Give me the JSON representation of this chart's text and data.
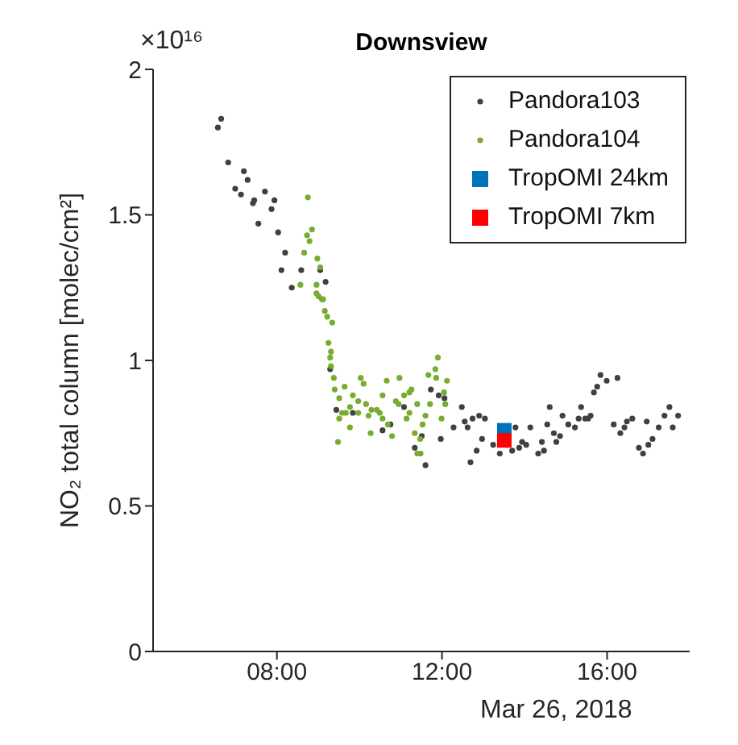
{
  "chart_data": {
    "type": "scatter",
    "title": "Downsview",
    "ylabel": "NO₂ total column [molec/cm²]",
    "annotations": [
      "×10¹⁶",
      "Mar 26, 2018"
    ],
    "xlim": [
      5,
      18
    ],
    "xticks": [
      {
        "value": 8,
        "label": "08:00"
      },
      {
        "value": 12,
        "label": "12:00"
      },
      {
        "value": 16,
        "label": "16:00"
      }
    ],
    "ylim": [
      0,
      2
    ],
    "yticks": [
      0,
      0.5,
      1,
      1.5,
      2
    ],
    "grid": false,
    "legend": "top right",
    "series": [
      {
        "name": "Pandora103",
        "color": "#404040",
        "marker": "circle",
        "x": [
          6.65,
          6.57,
          6.82,
          7.2,
          7.29,
          6.99,
          7.13,
          7.71,
          7.94,
          7.42,
          7.45,
          7.87,
          7.55,
          8.03,
          8.2,
          8.11,
          8.36,
          8.59,
          9.05,
          9.18,
          9.29,
          9.44,
          9.84,
          10.56,
          10.75,
          11.08,
          11.6,
          11.34,
          11.51,
          11.97,
          11.73,
          11.92,
          12.06,
          12.28,
          12.48,
          12.55,
          12.62,
          12.69,
          12.74,
          12.84,
          12.9,
          12.97,
          13.04,
          13.24,
          13.4,
          13.58,
          13.7,
          13.78,
          13.87,
          13.94,
          14.04,
          14.14,
          14.33,
          14.42,
          14.47,
          14.55,
          14.61,
          14.71,
          14.77,
          14.86,
          14.92,
          15.06,
          15.22,
          15.31,
          15.37,
          15.47,
          15.54,
          15.6,
          15.68,
          15.76,
          15.84,
          15.99,
          16.25,
          16.16,
          16.32,
          16.42,
          16.48,
          16.61,
          16.77,
          16.87,
          16.96,
          17.0,
          17.1,
          17.25,
          17.39,
          17.51,
          17.59,
          17.72
        ],
        "values": [
          1.83,
          1.8,
          1.68,
          1.65,
          1.62,
          1.59,
          1.57,
          1.58,
          1.55,
          1.54,
          1.55,
          1.52,
          1.47,
          1.44,
          1.37,
          1.31,
          1.25,
          1.31,
          1.31,
          1.27,
          0.97,
          0.83,
          0.82,
          0.76,
          0.78,
          0.84,
          0.64,
          0.7,
          0.74,
          0.73,
          0.9,
          0.88,
          0.87,
          0.77,
          0.84,
          0.79,
          0.77,
          0.65,
          0.8,
          0.69,
          0.81,
          0.73,
          0.8,
          0.71,
          0.68,
          0.71,
          0.69,
          0.77,
          0.7,
          0.72,
          0.71,
          0.77,
          0.68,
          0.72,
          0.69,
          0.78,
          0.84,
          0.75,
          0.72,
          0.74,
          0.81,
          0.78,
          0.77,
          0.8,
          0.84,
          0.8,
          0.8,
          0.81,
          0.89,
          0.91,
          0.95,
          0.93,
          0.94,
          0.78,
          0.75,
          0.77,
          0.79,
          0.8,
          0.7,
          0.68,
          0.79,
          0.71,
          0.73,
          0.77,
          0.81,
          0.84,
          0.77,
          0.81
        ]
      },
      {
        "name": "Pandora104",
        "color": "#77ac30",
        "marker": "circle",
        "x": [
          8.75,
          8.85,
          8.73,
          8.79,
          8.66,
          8.98,
          9.05,
          8.57,
          8.96,
          9.01,
          9.12,
          8.96,
          9.09,
          9.16,
          9.22,
          9.34,
          9.25,
          9.31,
          9.29,
          9.31,
          9.38,
          9.4,
          9.51,
          9.64,
          9.67,
          9.77,
          9.84,
          10.03,
          10.1,
          9.51,
          9.77,
          9.48,
          9.97,
          10.16,
          10.29,
          10.42,
          10.27,
          10.56,
          10.66,
          10.97,
          10.69,
          10.79,
          10.95,
          11.08,
          11.21,
          11.26,
          11.34,
          11.4,
          11.47,
          11.53,
          11.4,
          11.48,
          11.67,
          11.84,
          11.9,
          11.86,
          11.99,
          12.12,
          12.05,
          11.71,
          11.6,
          10.88,
          10.56,
          10.49,
          9.97,
          9.58,
          10.22,
          11.21,
          11.14,
          12.08
        ],
        "values": [
          1.56,
          1.45,
          1.43,
          1.41,
          1.37,
          1.35,
          1.32,
          1.26,
          1.26,
          1.22,
          1.21,
          1.23,
          1.21,
          1.17,
          1.15,
          1.13,
          1.06,
          1.03,
          1.01,
          0.98,
          0.94,
          0.9,
          0.87,
          0.91,
          0.82,
          0.84,
          0.88,
          0.94,
          0.92,
          0.8,
          0.77,
          0.72,
          0.86,
          0.85,
          0.83,
          0.83,
          0.75,
          0.8,
          0.93,
          0.94,
          0.78,
          0.74,
          0.85,
          0.88,
          0.89,
          0.9,
          0.75,
          0.85,
          0.73,
          0.78,
          0.68,
          0.68,
          0.95,
          0.97,
          1.01,
          0.94,
          0.8,
          0.93,
          0.89,
          0.85,
          0.81,
          0.86,
          0.88,
          0.82,
          0.82,
          0.82,
          0.81,
          0.82,
          0.8,
          0.85
        ]
      },
      {
        "name": "TropOMI 24km",
        "color": "#0072bd",
        "marker": "square",
        "x": [
          13.51
        ],
        "values": [
          0.76
        ]
      },
      {
        "name": "TropOMI 7km",
        "color": "#ff0000",
        "marker": "square",
        "x": [
          13.51
        ],
        "values": [
          0.725
        ]
      }
    ]
  }
}
